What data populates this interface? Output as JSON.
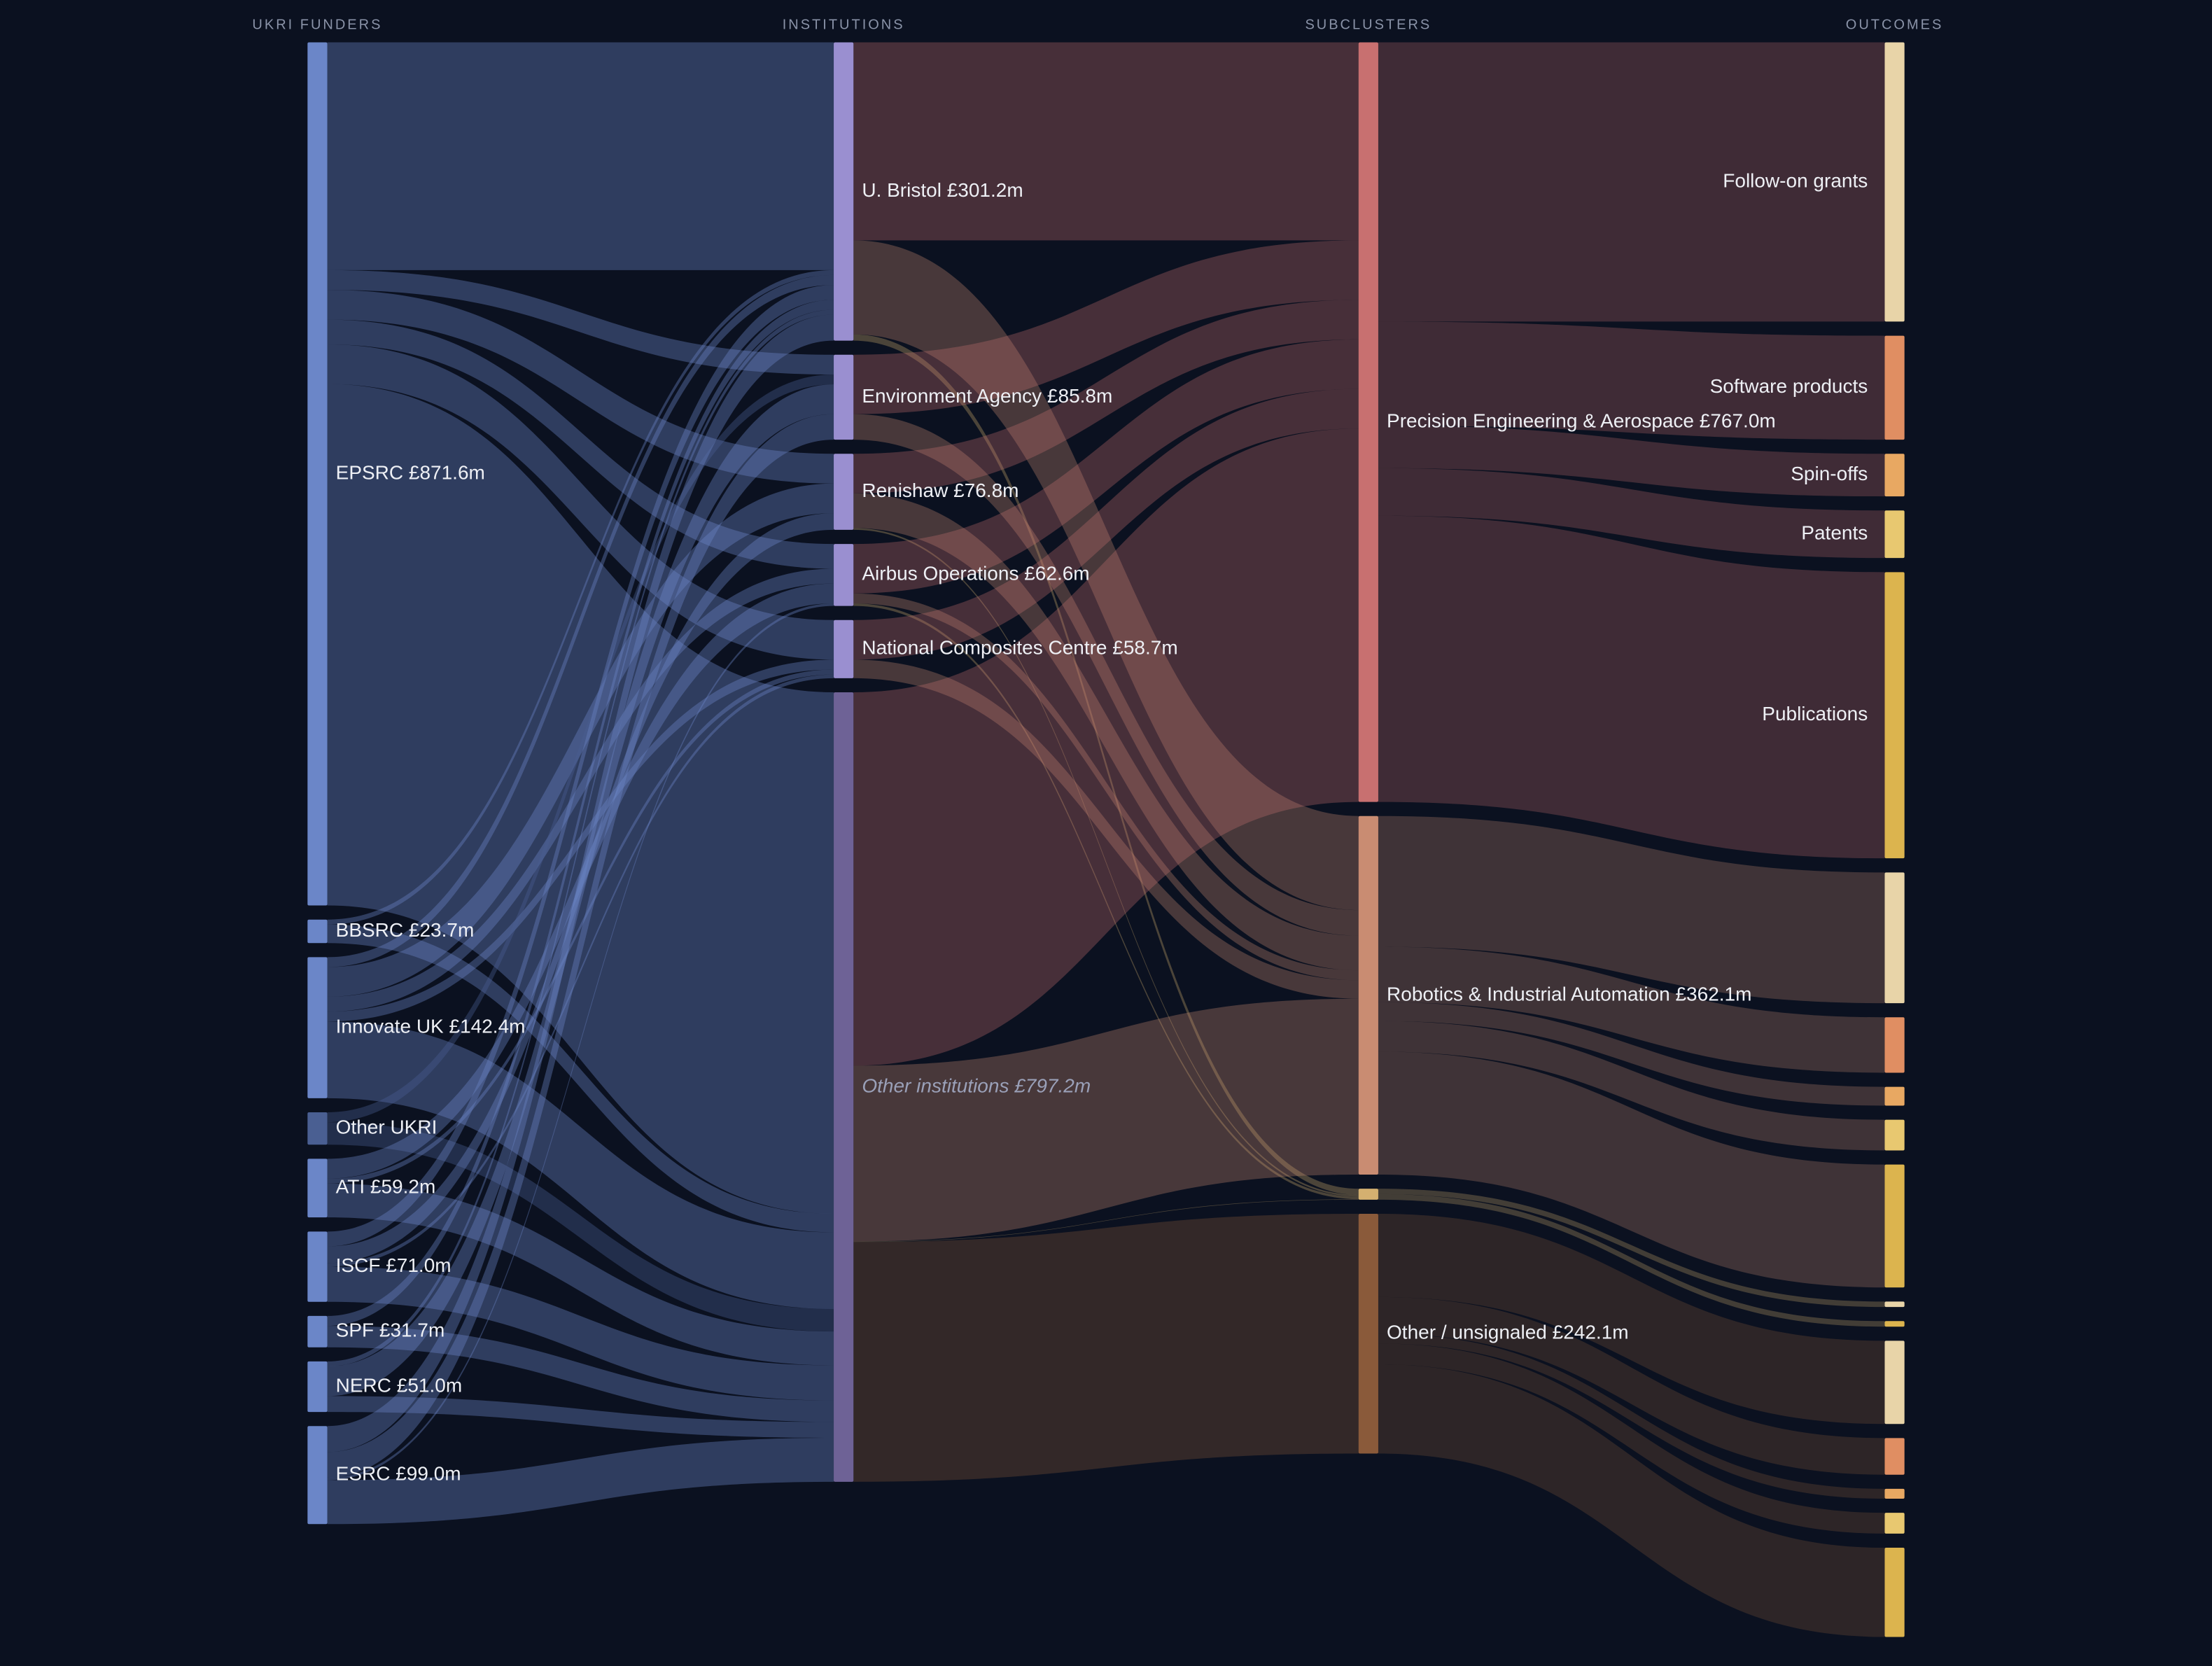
{
  "chart_data": {
    "type": "sankey",
    "columns": [
      {
        "title": "UKRI FUNDERS",
        "nodes": [
          {
            "label": "EPSRC £871.6m",
            "value": 871.6,
            "color": "#6b86c8"
          },
          {
            "label": "BBSRC £23.7m",
            "value": 23.7,
            "color": "#6b86c8"
          },
          {
            "label": "Innovate UK £142.4m",
            "value": 142.4,
            "color": "#6b86c8"
          },
          {
            "label": "Other UKRI",
            "value": 32.7,
            "color": "#4a5f92"
          },
          {
            "label": "ATI £59.2m",
            "value": 59.2,
            "color": "#6b86c8"
          },
          {
            "label": "ISCF £71.0m",
            "value": 71.0,
            "color": "#6b86c8"
          },
          {
            "label": "SPF £31.7m",
            "value": 31.7,
            "color": "#6b86c8"
          },
          {
            "label": "NERC £51.0m",
            "value": 51.0,
            "color": "#6b86c8"
          },
          {
            "label": "ESRC £99.0m",
            "value": 99.0,
            "color": "#6b86c8"
          }
        ]
      },
      {
        "title": "INSTITUTIONS",
        "nodes": [
          {
            "label": "U. Bristol £301.2m",
            "value": 301.2,
            "color": "#9a8fd0"
          },
          {
            "label": "Environment Agency £85.8m",
            "value": 85.8,
            "color": "#9a8fd0"
          },
          {
            "label": "Renishaw £76.8m",
            "value": 76.8,
            "color": "#9a8fd0"
          },
          {
            "label": "Airbus Operations £62.6m",
            "value": 62.6,
            "color": "#9a8fd0"
          },
          {
            "label": "National Composites Centre £58.7m",
            "value": 58.7,
            "color": "#9a8fd0"
          },
          {
            "label": "Other institutions £797.2m",
            "value": 797.2,
            "color": "#6e6296",
            "italic": true
          }
        ]
      },
      {
        "title": "SUBCLUSTERS",
        "nodes": [
          {
            "label": "Precision Engineering & Aerospace £767.0m",
            "value": 767.0,
            "color": "#c87070"
          },
          {
            "label": "Robotics & Industrial Automation £362.1m",
            "value": 362.1,
            "color": "#c98c72"
          },
          {
            "label": null,
            "value": 11.1,
            "color": "#d4b070"
          },
          {
            "label": "Other / unsignaled £242.1m",
            "value": 242.1,
            "color": "#8a5a3a"
          }
        ]
      },
      {
        "title": "OUTCOMES",
        "nodes": [
          {
            "label": "Follow-on grants",
            "value": 282.0,
            "color": "#e8d4a8"
          },
          {
            "label": "Software products",
            "value": 105.0,
            "color": "#e08e62"
          },
          {
            "label": "Spin-offs",
            "value": 43.0,
            "color": "#e8a862"
          },
          {
            "label": "Patents",
            "value": 48.0,
            "color": "#e8c870"
          },
          {
            "label": "Publications",
            "value": 289.0,
            "color": "#dcb44e"
          },
          {
            "label": null,
            "value": 132.0,
            "color": "#e8d4a8"
          },
          {
            "label": null,
            "value": 56.0,
            "color": "#e08e62"
          },
          {
            "label": null,
            "value": 19.0,
            "color": "#e8a862"
          },
          {
            "label": null,
            "value": 31.0,
            "color": "#e8c870"
          },
          {
            "label": null,
            "value": 124.1,
            "color": "#dcb44e"
          },
          {
            "label": null,
            "value": 5.5,
            "color": "#e8d4a8"
          },
          {
            "label": null,
            "value": 5.6,
            "color": "#dcb44e"
          },
          {
            "label": null,
            "value": 84.0,
            "color": "#e8d4a8"
          },
          {
            "label": null,
            "value": 37.0,
            "color": "#e08e62"
          },
          {
            "label": null,
            "value": 10.0,
            "color": "#e8a862"
          },
          {
            "label": null,
            "value": 21.0,
            "color": "#e8c870"
          },
          {
            "label": null,
            "value": 90.1,
            "color": "#dcb44e"
          }
        ]
      }
    ],
    "links": [
      {
        "from": [
          0,
          0
        ],
        "to": [
          1,
          0
        ],
        "value": 230
      },
      {
        "from": [
          0,
          0
        ],
        "to": [
          1,
          1
        ],
        "value": 20
      },
      {
        "from": [
          0,
          0
        ],
        "to": [
          1,
          2
        ],
        "value": 30
      },
      {
        "from": [
          0,
          0
        ],
        "to": [
          1,
          3
        ],
        "value": 25
      },
      {
        "from": [
          0,
          0
        ],
        "to": [
          1,
          4
        ],
        "value": 40
      },
      {
        "from": [
          0,
          0
        ],
        "to": [
          1,
          5
        ],
        "value": 526.6
      },
      {
        "from": [
          0,
          1
        ],
        "to": [
          1,
          0
        ],
        "value": 5
      },
      {
        "from": [
          0,
          1
        ],
        "to": [
          1,
          5
        ],
        "value": 18.7
      },
      {
        "from": [
          0,
          2
        ],
        "to": [
          1,
          0
        ],
        "value": 10
      },
      {
        "from": [
          0,
          2
        ],
        "to": [
          1,
          2
        ],
        "value": 30
      },
      {
        "from": [
          0,
          2
        ],
        "to": [
          1,
          3
        ],
        "value": 15
      },
      {
        "from": [
          0,
          2
        ],
        "to": [
          1,
          4
        ],
        "value": 10
      },
      {
        "from": [
          0,
          2
        ],
        "to": [
          1,
          5
        ],
        "value": 77.4
      },
      {
        "from": [
          0,
          3
        ],
        "to": [
          1,
          1
        ],
        "value": 10
      },
      {
        "from": [
          0,
          3
        ],
        "to": [
          1,
          5
        ],
        "value": 22.7
      },
      {
        "from": [
          0,
          4
        ],
        "to": [
          1,
          3
        ],
        "value": 20
      },
      {
        "from": [
          0,
          4
        ],
        "to": [
          1,
          4
        ],
        "value": 5
      },
      {
        "from": [
          0,
          4
        ],
        "to": [
          1,
          5
        ],
        "value": 34.2
      },
      {
        "from": [
          0,
          5
        ],
        "to": [
          1,
          0
        ],
        "value": 15
      },
      {
        "from": [
          0,
          5
        ],
        "to": [
          1,
          2
        ],
        "value": 16.8
      },
      {
        "from": [
          0,
          5
        ],
        "to": [
          1,
          4
        ],
        "value": 3.7
      },
      {
        "from": [
          0,
          5
        ],
        "to": [
          1,
          5
        ],
        "value": 35.5
      },
      {
        "from": [
          0,
          6
        ],
        "to": [
          1,
          0
        ],
        "value": 10
      },
      {
        "from": [
          0,
          6
        ],
        "to": [
          1,
          5
        ],
        "value": 21.7
      },
      {
        "from": [
          0,
          7
        ],
        "to": [
          1,
          0
        ],
        "value": 5
      },
      {
        "from": [
          0,
          7
        ],
        "to": [
          1,
          1
        ],
        "value": 30
      },
      {
        "from": [
          0,
          7
        ],
        "to": [
          1,
          5
        ],
        "value": 16.0
      },
      {
        "from": [
          0,
          8
        ],
        "to": [
          1,
          0
        ],
        "value": 26.2
      },
      {
        "from": [
          0,
          8
        ],
        "to": [
          1,
          1
        ],
        "value": 25.8
      },
      {
        "from": [
          0,
          8
        ],
        "to": [
          1,
          3
        ],
        "value": 2.6
      },
      {
        "from": [
          0,
          8
        ],
        "to": [
          1,
          5
        ],
        "value": 44.4
      },
      {
        "from": [
          1,
          0
        ],
        "to": [
          2,
          0
        ],
        "value": 200
      },
      {
        "from": [
          1,
          0
        ],
        "to": [
          2,
          1
        ],
        "value": 95
      },
      {
        "from": [
          1,
          0
        ],
        "to": [
          2,
          2
        ],
        "value": 6.2
      },
      {
        "from": [
          1,
          1
        ],
        "to": [
          2,
          0
        ],
        "value": 60
      },
      {
        "from": [
          1,
          1
        ],
        "to": [
          2,
          1
        ],
        "value": 25.8
      },
      {
        "from": [
          1,
          2
        ],
        "to": [
          2,
          0
        ],
        "value": 40
      },
      {
        "from": [
          1,
          2
        ],
        "to": [
          2,
          1
        ],
        "value": 35
      },
      {
        "from": [
          1,
          2
        ],
        "to": [
          2,
          2
        ],
        "value": 1.8
      },
      {
        "from": [
          1,
          3
        ],
        "to": [
          2,
          0
        ],
        "value": 50
      },
      {
        "from": [
          1,
          3
        ],
        "to": [
          2,
          1
        ],
        "value": 10
      },
      {
        "from": [
          1,
          3
        ],
        "to": [
          2,
          2
        ],
        "value": 2.6
      },
      {
        "from": [
          1,
          4
        ],
        "to": [
          2,
          0
        ],
        "value": 40
      },
      {
        "from": [
          1,
          4
        ],
        "to": [
          2,
          1
        ],
        "value": 18.7
      },
      {
        "from": [
          1,
          5
        ],
        "to": [
          2,
          0
        ],
        "value": 377
      },
      {
        "from": [
          1,
          5
        ],
        "to": [
          2,
          1
        ],
        "value": 177.6
      },
      {
        "from": [
          1,
          5
        ],
        "to": [
          2,
          2
        ],
        "value": 0.5
      },
      {
        "from": [
          1,
          5
        ],
        "to": [
          2,
          3
        ],
        "value": 242.1
      },
      {
        "from": [
          2,
          0
        ],
        "to": [
          3,
          0
        ],
        "value": 282.0
      },
      {
        "from": [
          2,
          0
        ],
        "to": [
          3,
          1
        ],
        "value": 105.0
      },
      {
        "from": [
          2,
          0
        ],
        "to": [
          3,
          2
        ],
        "value": 43.0
      },
      {
        "from": [
          2,
          0
        ],
        "to": [
          3,
          3
        ],
        "value": 48.0
      },
      {
        "from": [
          2,
          0
        ],
        "to": [
          3,
          4
        ],
        "value": 289.0
      },
      {
        "from": [
          2,
          1
        ],
        "to": [
          3,
          5
        ],
        "value": 132.0
      },
      {
        "from": [
          2,
          1
        ],
        "to": [
          3,
          6
        ],
        "value": 56.0
      },
      {
        "from": [
          2,
          1
        ],
        "to": [
          3,
          7
        ],
        "value": 19.0
      },
      {
        "from": [
          2,
          1
        ],
        "to": [
          3,
          8
        ],
        "value": 31.0
      },
      {
        "from": [
          2,
          1
        ],
        "to": [
          3,
          9
        ],
        "value": 124.1
      },
      {
        "from": [
          2,
          2
        ],
        "to": [
          3,
          10
        ],
        "value": 5.5
      },
      {
        "from": [
          2,
          2
        ],
        "to": [
          3,
          11
        ],
        "value": 5.6
      },
      {
        "from": [
          2,
          3
        ],
        "to": [
          3,
          12
        ],
        "value": 84.0
      },
      {
        "from": [
          2,
          3
        ],
        "to": [
          3,
          13
        ],
        "value": 37.0
      },
      {
        "from": [
          2,
          3
        ],
        "to": [
          3,
          14
        ],
        "value": 10.0
      },
      {
        "from": [
          2,
          3
        ],
        "to": [
          3,
          15
        ],
        "value": 21.0
      },
      {
        "from": [
          2,
          3
        ],
        "to": [
          3,
          16
        ],
        "value": 90.1
      }
    ]
  }
}
